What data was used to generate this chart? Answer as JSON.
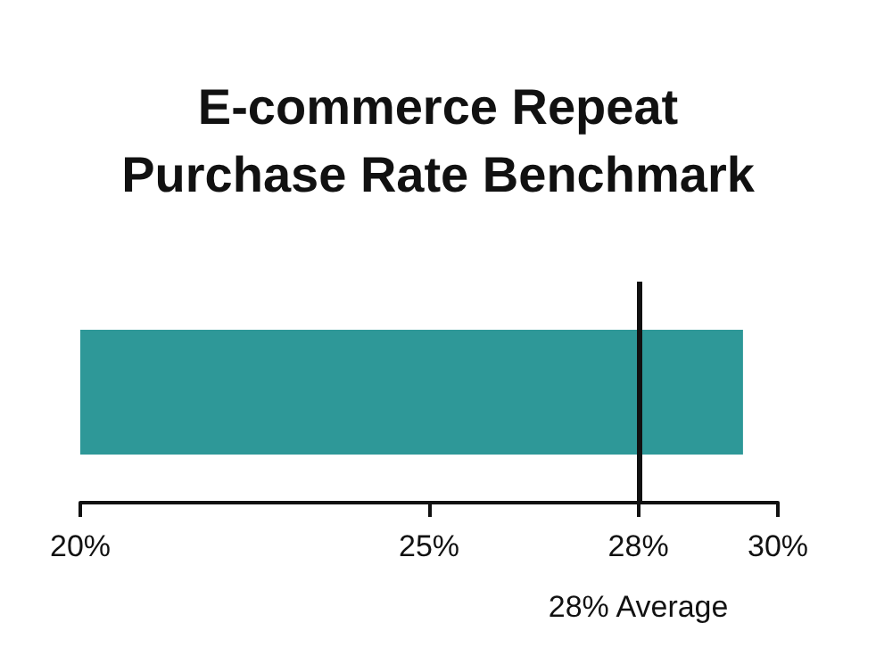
{
  "chart_data": {
    "type": "bar",
    "orientation": "horizontal",
    "title": "E-commerce Repeat\nPurchase Rate Benchmark",
    "categories": [
      null
    ],
    "values": [
      29.5
    ],
    "color": "#2e9898",
    "xlim": [
      20,
      30
    ],
    "xticks": [
      {
        "value": 20,
        "label": "20%"
      },
      {
        "value": 25,
        "label": "25%"
      },
      {
        "value": 28,
        "label": "28%"
      },
      {
        "value": 30,
        "label": "30%"
      }
    ],
    "ref_lines": [
      {
        "axis": "x",
        "value": 28,
        "label": "28% Average",
        "color": "#111111"
      }
    ]
  }
}
